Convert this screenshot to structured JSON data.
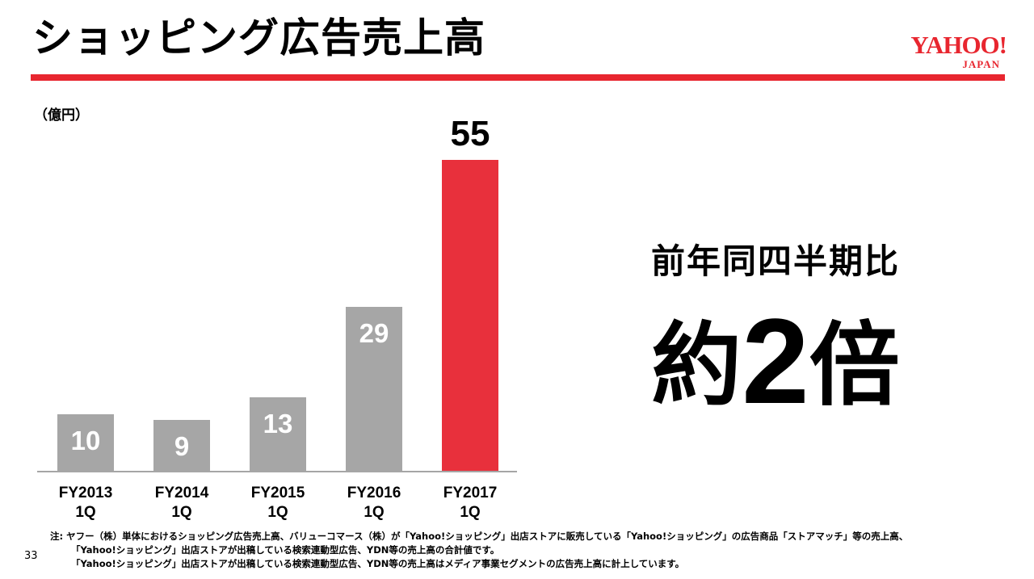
{
  "header": {
    "title": "ショッピング広告売上高",
    "logo_main": "YAHOO!",
    "logo_sub": "JAPAN"
  },
  "colors": {
    "accent": "#e8262f",
    "bar_gray": "#a6a6a6",
    "bar_highlight": "#e8303c"
  },
  "chart_data": {
    "type": "bar",
    "unit_label": "（億円）",
    "categories": [
      [
        "FY2013",
        "1Q"
      ],
      [
        "FY2014",
        "1Q"
      ],
      [
        "FY2015",
        "1Q"
      ],
      [
        "FY2016",
        "1Q"
      ],
      [
        "FY2017",
        "1Q"
      ]
    ],
    "values": [
      10,
      9,
      13,
      29,
      55
    ],
    "highlight_index": 4,
    "ylim": [
      0,
      55
    ]
  },
  "callout": {
    "line1": "前年同四半期比",
    "prefix": "約",
    "number": "2",
    "suffix": "倍"
  },
  "notes": {
    "line1": "注: ヤフー（株）単体におけるショッピング広告売上高、バリューコマース（株）が「Yahoo!ショッピング」出店ストアに販売している「Yahoo!ショッピング」の広告商品「ストアマッチ」等の売上高、",
    "line2": "「Yahoo!ショッピング」出店ストアが出稿している検索連動型広告、YDN等の売上高の合計値です。",
    "line3": "「Yahoo!ショッピング」出店ストアが出稿している検索連動型広告、YDN等の売上高はメディア事業セグメントの広告売上高に計上しています。"
  },
  "page_number": "33"
}
